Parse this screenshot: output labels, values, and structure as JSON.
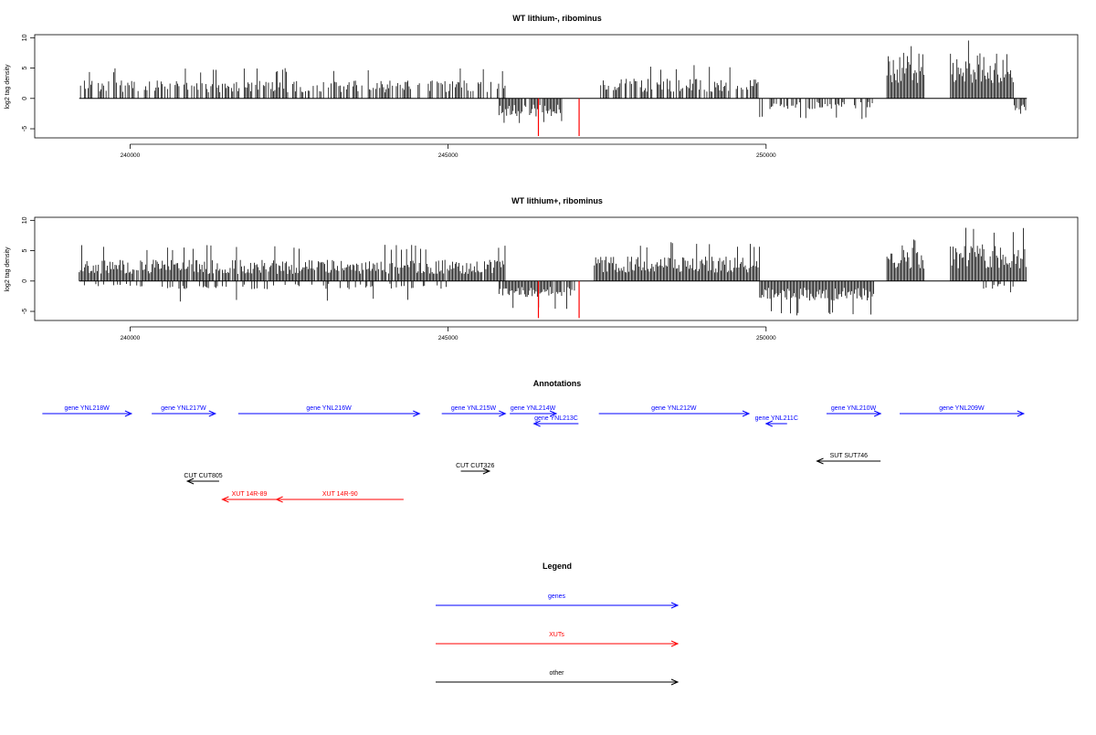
{
  "chart_data": [
    {
      "type": "bar",
      "title": "WT lithium-, ribominus",
      "ylabel": "log2 tag density",
      "xlabel": "",
      "xlim": [
        238500,
        254900
      ],
      "ylim": [
        -6.5,
        10.5
      ],
      "yticks": [
        -5,
        0,
        5,
        10
      ],
      "xticks": [
        240000,
        245000,
        250000
      ],
      "grid": false,
      "baseline": {
        "from": 239200,
        "to": 254100
      },
      "positive_regions": [
        {
          "start": 239200,
          "end": 245900,
          "mean": 2.2,
          "max": 5.0,
          "density": 0.55
        },
        {
          "start": 247400,
          "end": 249900,
          "mean": 2.4,
          "max": 5.5,
          "density": 0.7
        },
        {
          "start": 251900,
          "end": 252500,
          "mean": 5.5,
          "max": 8.8,
          "density": 1.0
        },
        {
          "start": 252900,
          "end": 253900,
          "mean": 5.5,
          "max": 9.8,
          "density": 1.0
        }
      ],
      "negative_regions": [
        {
          "start": 245800,
          "end": 246800,
          "mean": -2.2,
          "max": -4.2,
          "density": 0.9
        },
        {
          "start": 249900,
          "end": 251700,
          "mean": -1.3,
          "max": -3.4,
          "density": 0.5
        },
        {
          "start": 253900,
          "end": 254100,
          "mean": -1.5,
          "max": -2.8,
          "density": 0.9
        }
      ],
      "highlight_bars": [
        {
          "x": 246420,
          "value": -6.2,
          "color": "#ff0000"
        },
        {
          "x": 247060,
          "value": -6.2,
          "color": "#ff0000"
        }
      ]
    },
    {
      "type": "bar",
      "title": "WT lithium+, ribominus",
      "ylabel": "log2 tag density",
      "xlabel": "",
      "xlim": [
        238500,
        254900
      ],
      "ylim": [
        -6.5,
        10.5
      ],
      "yticks": [
        -5,
        0,
        5,
        10
      ],
      "xticks": [
        240000,
        245000,
        250000
      ],
      "grid": false,
      "baseline": {
        "from": 239200,
        "to": 254100
      },
      "positive_regions": [
        {
          "start": 239200,
          "end": 245900,
          "mean": 2.6,
          "max": 6.0,
          "density": 0.95
        },
        {
          "start": 247300,
          "end": 249900,
          "mean": 3.0,
          "max": 6.5,
          "density": 1.0
        },
        {
          "start": 251900,
          "end": 252500,
          "mean": 4.5,
          "max": 7.4,
          "density": 1.0
        },
        {
          "start": 252900,
          "end": 254100,
          "mean": 4.5,
          "max": 9.0,
          "density": 1.0
        }
      ],
      "negative_regions": [
        {
          "start": 239200,
          "end": 245000,
          "mean": -1.0,
          "max": -3.4,
          "density": 0.25
        },
        {
          "start": 245800,
          "end": 247000,
          "mean": -2.0,
          "max": -4.6,
          "density": 0.95
        },
        {
          "start": 249900,
          "end": 251700,
          "mean": -2.4,
          "max": -5.8,
          "density": 1.0
        },
        {
          "start": 253400,
          "end": 253900,
          "mean": -1.0,
          "max": -2.0,
          "density": 0.4
        }
      ],
      "highlight_bars": [
        {
          "x": 246420,
          "value": -6.1,
          "color": "#ff0000"
        },
        {
          "x": 247060,
          "value": -6.1,
          "color": "#ff0000"
        }
      ]
    }
  ],
  "annotations": {
    "title": "Annotations",
    "xlim": [
      238500,
      254900
    ],
    "features": [
      {
        "label": "gene YNL218W",
        "type": "gene",
        "row": 0,
        "start": 238620,
        "end": 240020,
        "strand": "+"
      },
      {
        "label": "gene YNL217W",
        "type": "gene",
        "row": 0,
        "start": 240340,
        "end": 241340,
        "strand": "+"
      },
      {
        "label": "gene YNL216W",
        "type": "gene",
        "row": 0,
        "start": 241700,
        "end": 244550,
        "strand": "+"
      },
      {
        "label": "gene YNL215W",
        "type": "gene",
        "row": 0,
        "start": 244900,
        "end": 245900,
        "strand": "+"
      },
      {
        "label": "gene YNL214W",
        "type": "gene",
        "row": 0,
        "start": 245970,
        "end": 246700,
        "strand": "+"
      },
      {
        "label": "gene YNL213C",
        "type": "gene",
        "row": 1,
        "start": 246350,
        "end": 247050,
        "strand": "-"
      },
      {
        "label": "gene YNL212W",
        "type": "gene",
        "row": 0,
        "start": 247370,
        "end": 249730,
        "strand": "+"
      },
      {
        "label": "gene YNL211C",
        "type": "gene",
        "row": 1,
        "start": 250000,
        "end": 250330,
        "strand": "-"
      },
      {
        "label": "gene YNL210W",
        "type": "gene",
        "row": 0,
        "start": 250950,
        "end": 251800,
        "strand": "+"
      },
      {
        "label": "gene YNL209W",
        "type": "gene",
        "row": 0,
        "start": 252100,
        "end": 254050,
        "strand": "+"
      },
      {
        "label": "SUT SUT746",
        "type": "other",
        "row": 3,
        "start": 250800,
        "end": 251800,
        "strand": "-"
      },
      {
        "label": "CUT CUT326",
        "type": "other",
        "row": 4,
        "start": 245200,
        "end": 245650,
        "strand": "+"
      },
      {
        "label": "CUT CUT805",
        "type": "other",
        "row": 5,
        "start": 240900,
        "end": 241400,
        "strand": "-"
      },
      {
        "label": "XUT 14R-89",
        "type": "xut",
        "row": 6,
        "start": 241450,
        "end": 242300,
        "strand": "-"
      },
      {
        "label": "XUT 14R-90",
        "type": "xut",
        "row": 6,
        "start": 242300,
        "end": 244300,
        "strand": "-"
      }
    ]
  },
  "legend": {
    "title": "Legend",
    "items": [
      {
        "label": "genes",
        "type": "gene"
      },
      {
        "label": "XUTs",
        "type": "xut"
      },
      {
        "label": "other",
        "type": "other"
      }
    ]
  },
  "colors": {
    "gene": "#0000ff",
    "xut": "#ff0000",
    "other": "#000000",
    "bar": "#000000",
    "highlight": "#ff0000"
  }
}
